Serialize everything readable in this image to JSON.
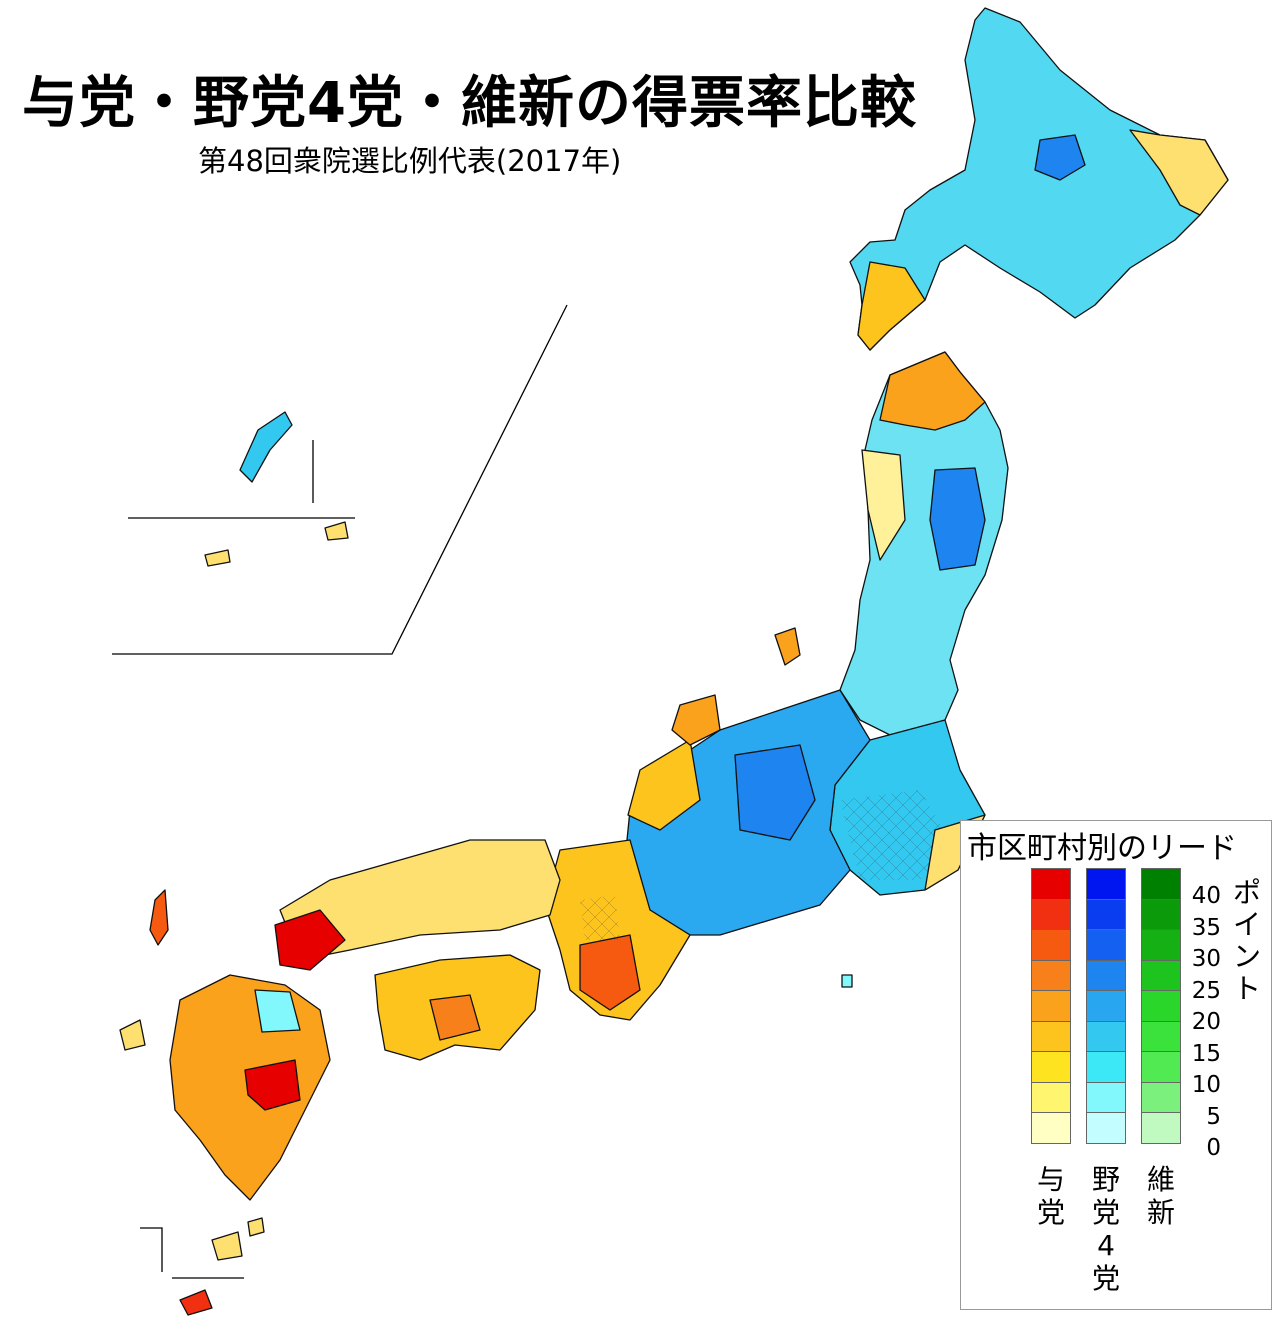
{
  "title": "与党・野党4党・維新の得票率比較",
  "subtitle": "第48回衆院選比例代表(2017年)",
  "legend": {
    "title": "市区町村別のリード",
    "unit": "ポイント",
    "ticks": [
      "40",
      "35",
      "30",
      "25",
      "20",
      "15",
      "10",
      "5",
      "0"
    ],
    "columns": [
      {
        "label": "与党",
        "colors": [
          "#e60000",
          "#f03010",
          "#f55a10",
          "#f8801a",
          "#fba21c",
          "#fdc41e",
          "#fee420",
          "#fff56e",
          "#ffffc4"
        ]
      },
      {
        "label": "野党4党",
        "colors": [
          "#0016f0",
          "#0a3cf0",
          "#1460f0",
          "#1e84f0",
          "#28a6f0",
          "#32c8f0",
          "#3ce8f6",
          "#82f8fc",
          "#c4fdff"
        ]
      },
      {
        "label": "維新",
        "colors": [
          "#008000",
          "#0a9a0a",
          "#14b014",
          "#1ec41e",
          "#2ad62a",
          "#3ce23c",
          "#52ea52",
          "#7cf07c",
          "#c0fac0"
        ]
      }
    ]
  },
  "regions": [
    {
      "name": "hokkaido",
      "lead": "野党4党"
    },
    {
      "name": "tohoku",
      "lead": "野党4党"
    },
    {
      "name": "kanto",
      "lead": "野党4党"
    },
    {
      "name": "chubu",
      "lead": "野党4党"
    },
    {
      "name": "kinki",
      "lead": "与党"
    },
    {
      "name": "chugoku",
      "lead": "与党"
    },
    {
      "name": "shikoku",
      "lead": "与党"
    },
    {
      "name": "kyushu",
      "lead": "与党"
    },
    {
      "name": "okinawa",
      "lead": "野党4党"
    }
  ]
}
